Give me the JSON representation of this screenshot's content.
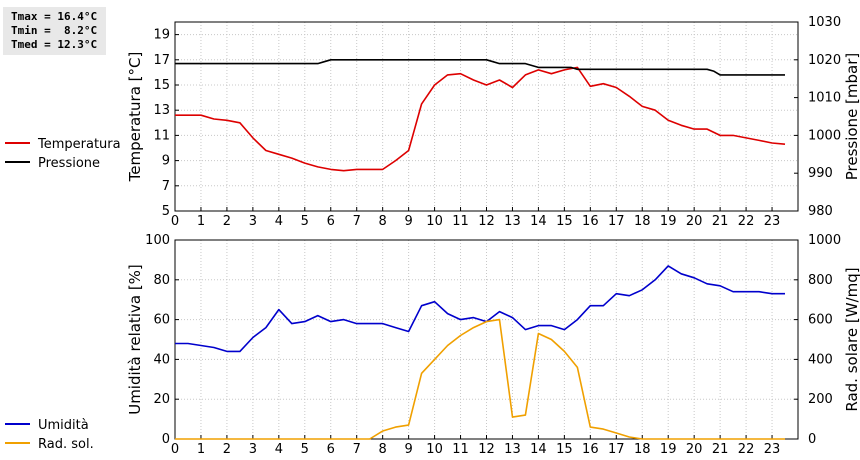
{
  "stats": {
    "tmax": "Tmax = 16.4°C",
    "tmin": "Tmin =  8.2°C",
    "tmed": "Tmed = 12.3°C"
  },
  "chart_data": [
    {
      "type": "line",
      "xlim": [
        0,
        24
      ],
      "xticks": [
        0,
        1,
        2,
        3,
        4,
        5,
        6,
        7,
        8,
        9,
        10,
        11,
        12,
        13,
        14,
        15,
        16,
        17,
        18,
        19,
        20,
        21,
        22,
        23
      ],
      "ylabel": "Temperatura [°C]",
      "ylim": [
        5,
        20
      ],
      "yticks": [
        5,
        7,
        9,
        11,
        13,
        15,
        17,
        19
      ],
      "y2label": "Pressione [mbar]",
      "y2lim": [
        980,
        1030
      ],
      "y2ticks": [
        980,
        990,
        1000,
        1010,
        1020,
        1030
      ],
      "grid": true,
      "legend_position": "left",
      "series": [
        {
          "name": "Temperatura",
          "axis": "left",
          "color": "#dd0000",
          "x": [
            0,
            0.5,
            1,
            1.5,
            2,
            2.5,
            3,
            3.5,
            4,
            4.5,
            5,
            5.5,
            6,
            6.5,
            7,
            7.5,
            8,
            8.5,
            9,
            9.5,
            10,
            10.5,
            11,
            11.5,
            12,
            12.5,
            13,
            13.5,
            14,
            14.5,
            15,
            15.5,
            16,
            16.5,
            17,
            17.5,
            18,
            18.5,
            19,
            19.5,
            20,
            20.5,
            21,
            21.5,
            22,
            22.5,
            23,
            23.5
          ],
          "y": [
            12.6,
            12.6,
            12.6,
            12.3,
            12.2,
            12.0,
            10.8,
            9.8,
            9.5,
            9.2,
            8.8,
            8.5,
            8.3,
            8.2,
            8.3,
            8.3,
            8.3,
            9.0,
            9.8,
            13.5,
            15.0,
            15.8,
            15.9,
            15.4,
            15.0,
            15.4,
            14.8,
            15.8,
            16.2,
            15.9,
            16.2,
            16.4,
            14.9,
            15.1,
            14.8,
            14.1,
            13.3,
            13.0,
            12.2,
            11.8,
            11.5,
            11.5,
            11.0,
            11.0,
            10.8,
            10.6,
            10.4,
            10.3
          ]
        },
        {
          "name": "Pressione",
          "axis": "right",
          "color": "#000000",
          "x": [
            0,
            5.5,
            5.75,
            6,
            12,
            12.25,
            12.5,
            13.5,
            13.75,
            14,
            15.25,
            15.5,
            20.5,
            20.75,
            21,
            23.5
          ],
          "y": [
            1019,
            1019,
            1019.5,
            1020,
            1020,
            1019.5,
            1019,
            1019,
            1018.5,
            1018,
            1018,
            1017.5,
            1017.5,
            1017,
            1016,
            1016
          ]
        }
      ]
    },
    {
      "type": "line",
      "xlim": [
        0,
        24
      ],
      "xticks": [
        0,
        1,
        2,
        3,
        4,
        5,
        6,
        7,
        8,
        9,
        10,
        11,
        12,
        13,
        14,
        15,
        16,
        17,
        18,
        19,
        20,
        21,
        22,
        23
      ],
      "ylabel": "Umidità relativa [%]",
      "ylim": [
        0,
        100
      ],
      "yticks": [
        0,
        20,
        40,
        60,
        80,
        100
      ],
      "y2label": "Rad. solare [W/mq]",
      "y2lim": [
        0,
        1000
      ],
      "y2ticks": [
        0,
        200,
        400,
        600,
        800,
        1000
      ],
      "grid": true,
      "legend_position": "left",
      "series": [
        {
          "name": "Umidità",
          "axis": "left",
          "color": "#0000cc",
          "x": [
            0,
            0.5,
            1,
            1.5,
            2,
            2.5,
            3,
            3.5,
            4,
            4.5,
            5,
            5.5,
            6,
            6.5,
            7,
            7.5,
            8,
            8.5,
            9,
            9.5,
            10,
            10.5,
            11,
            11.5,
            12,
            12.5,
            13,
            13.5,
            14,
            14.5,
            15,
            15.5,
            16,
            16.5,
            17,
            17.5,
            18,
            18.5,
            19,
            19.5,
            20,
            20.5,
            21,
            21.5,
            22,
            22.5,
            23,
            23.5
          ],
          "y": [
            48,
            48,
            47,
            46,
            44,
            44,
            51,
            56,
            65,
            58,
            59,
            62,
            59,
            60,
            58,
            58,
            58,
            56,
            54,
            67,
            69,
            63,
            60,
            61,
            59,
            64,
            61,
            55,
            57,
            57,
            55,
            60,
            67,
            67,
            73,
            72,
            75,
            80,
            87,
            83,
            81,
            78,
            77,
            74,
            74,
            74,
            73,
            73
          ]
        },
        {
          "name": "Rad. sol.",
          "axis": "right",
          "color": "#f0a000",
          "x": [
            0,
            7.5,
            8,
            8.5,
            9,
            9.5,
            10,
            10.5,
            11,
            11.5,
            12,
            12.5,
            13,
            13.5,
            14,
            14.5,
            15,
            15.5,
            16,
            16.5,
            17,
            17.5,
            18,
            23.5
          ],
          "y": [
            0,
            0,
            40,
            60,
            70,
            330,
            400,
            470,
            520,
            560,
            590,
            600,
            110,
            120,
            530,
            500,
            440,
            360,
            60,
            50,
            30,
            10,
            0,
            0
          ]
        }
      ]
    }
  ]
}
